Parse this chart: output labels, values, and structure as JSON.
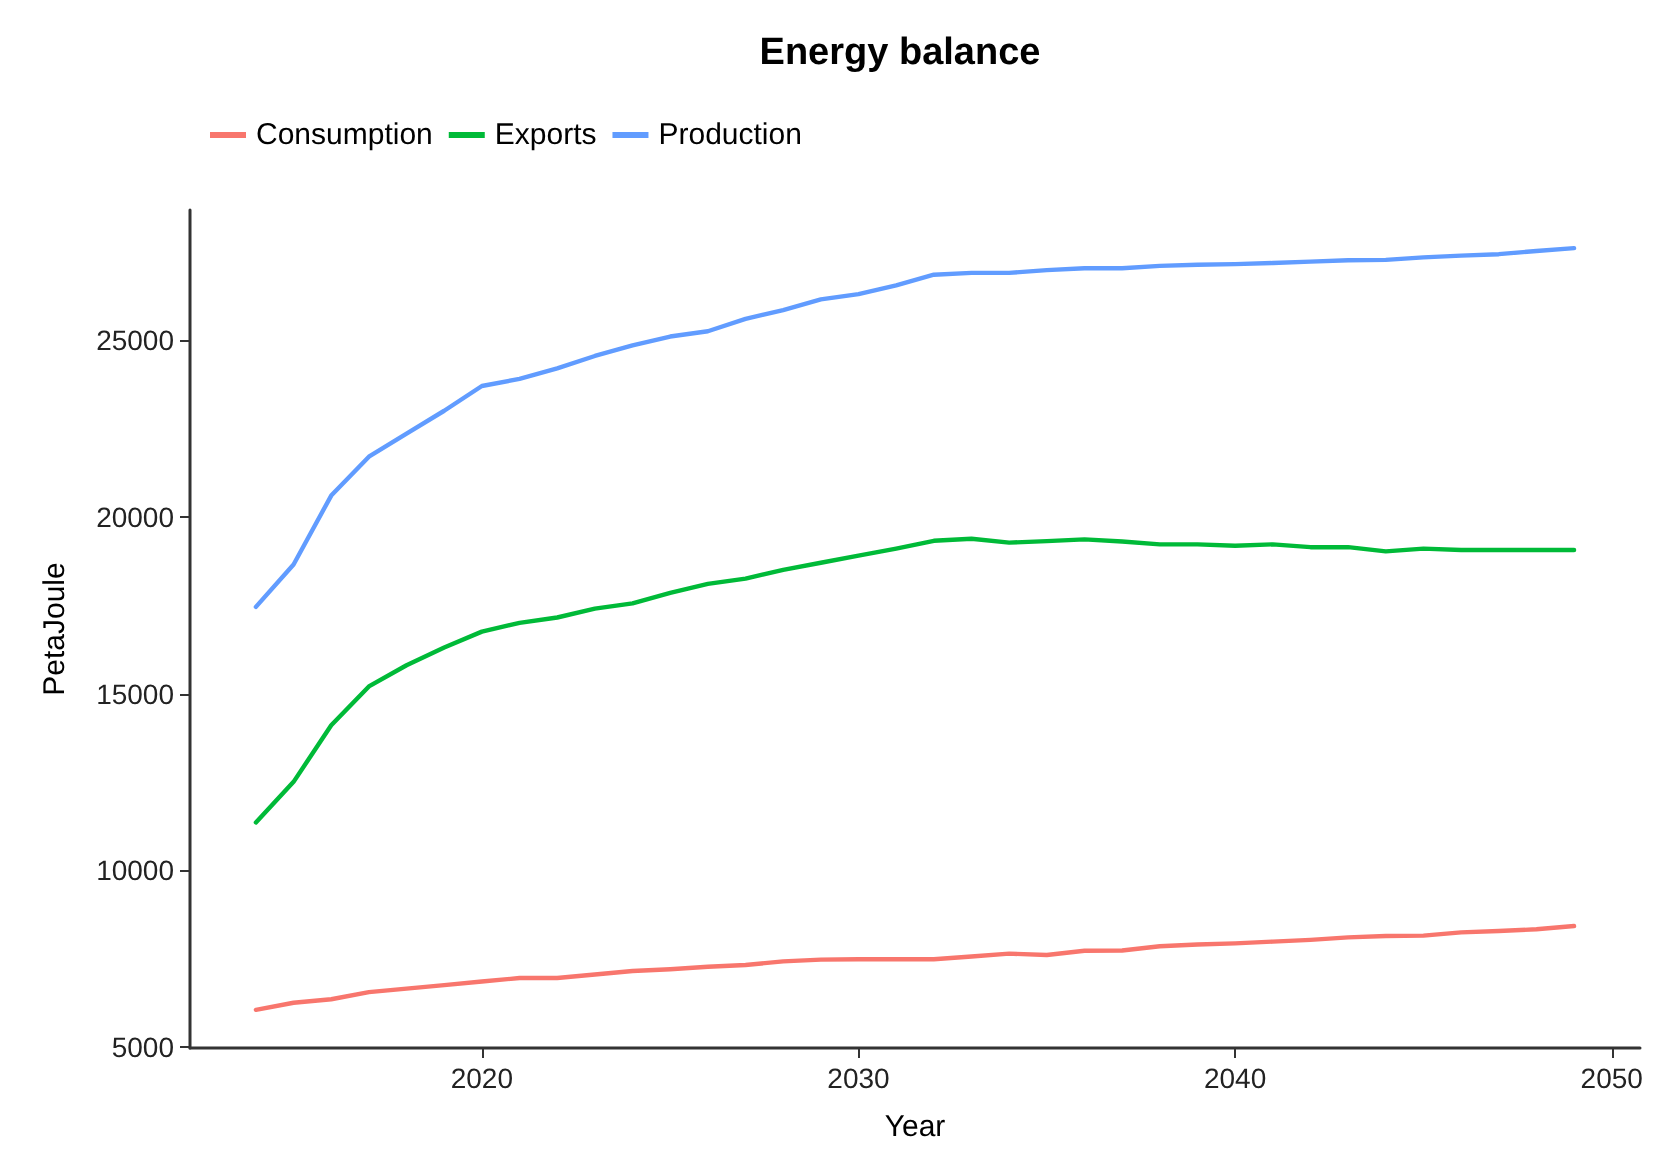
{
  "chart_data": {
    "type": "line",
    "title": "Energy balance",
    "xlabel": "Year",
    "ylabel": "PetaJoule",
    "x": [
      2014,
      2015,
      2016,
      2017,
      2018,
      2019,
      2020,
      2021,
      2022,
      2023,
      2024,
      2025,
      2026,
      2027,
      2028,
      2029,
      2030,
      2031,
      2032,
      2033,
      2034,
      2035,
      2036,
      2037,
      2038,
      2039,
      2040,
      2041,
      2042,
      2043,
      2044,
      2045,
      2046,
      2047,
      2048,
      2049
    ],
    "series": [
      {
        "name": "Consumption",
        "color": "#f8766d",
        "values": [
          6050,
          6250,
          6350,
          6550,
          6650,
          6750,
          6850,
          6950,
          6950,
          7050,
          7150,
          7200,
          7270,
          7320,
          7420,
          7470,
          7480,
          7480,
          7480,
          7560,
          7640,
          7600,
          7720,
          7730,
          7850,
          7900,
          7930,
          7980,
          8030,
          8100,
          8140,
          8150,
          8240,
          8280,
          8330,
          8420
        ]
      },
      {
        "name": "Exports",
        "color": "#00ba38",
        "values": [
          11350,
          12500,
          14100,
          15200,
          15800,
          16300,
          16750,
          17000,
          17150,
          17400,
          17550,
          17850,
          18100,
          18250,
          18500,
          18700,
          18900,
          19100,
          19320,
          19380,
          19270,
          19310,
          19360,
          19300,
          19220,
          19220,
          19180,
          19220,
          19140,
          19140,
          19020,
          19100,
          19060,
          19060,
          19060,
          19060
        ]
      },
      {
        "name": "Production",
        "color": "#619cff",
        "values": [
          17450,
          18650,
          20600,
          21700,
          22350,
          23000,
          23700,
          23900,
          24200,
          24550,
          24850,
          25100,
          25250,
          25600,
          25850,
          26150,
          26300,
          26550,
          26850,
          26900,
          26900,
          26980,
          27030,
          27030,
          27100,
          27130,
          27150,
          27180,
          27220,
          27260,
          27270,
          27340,
          27390,
          27430,
          27520,
          27600
        ]
      }
    ],
    "xlim": [
      2012.25,
      2050.75
    ],
    "ylim": [
      4970,
      28680
    ],
    "xticks": [
      2020,
      2030,
      2040,
      2050
    ],
    "yticks": [
      5000,
      10000,
      15000,
      20000,
      25000
    ],
    "grid": false,
    "legend": "top left",
    "marker": "none",
    "line_style": "solid"
  }
}
